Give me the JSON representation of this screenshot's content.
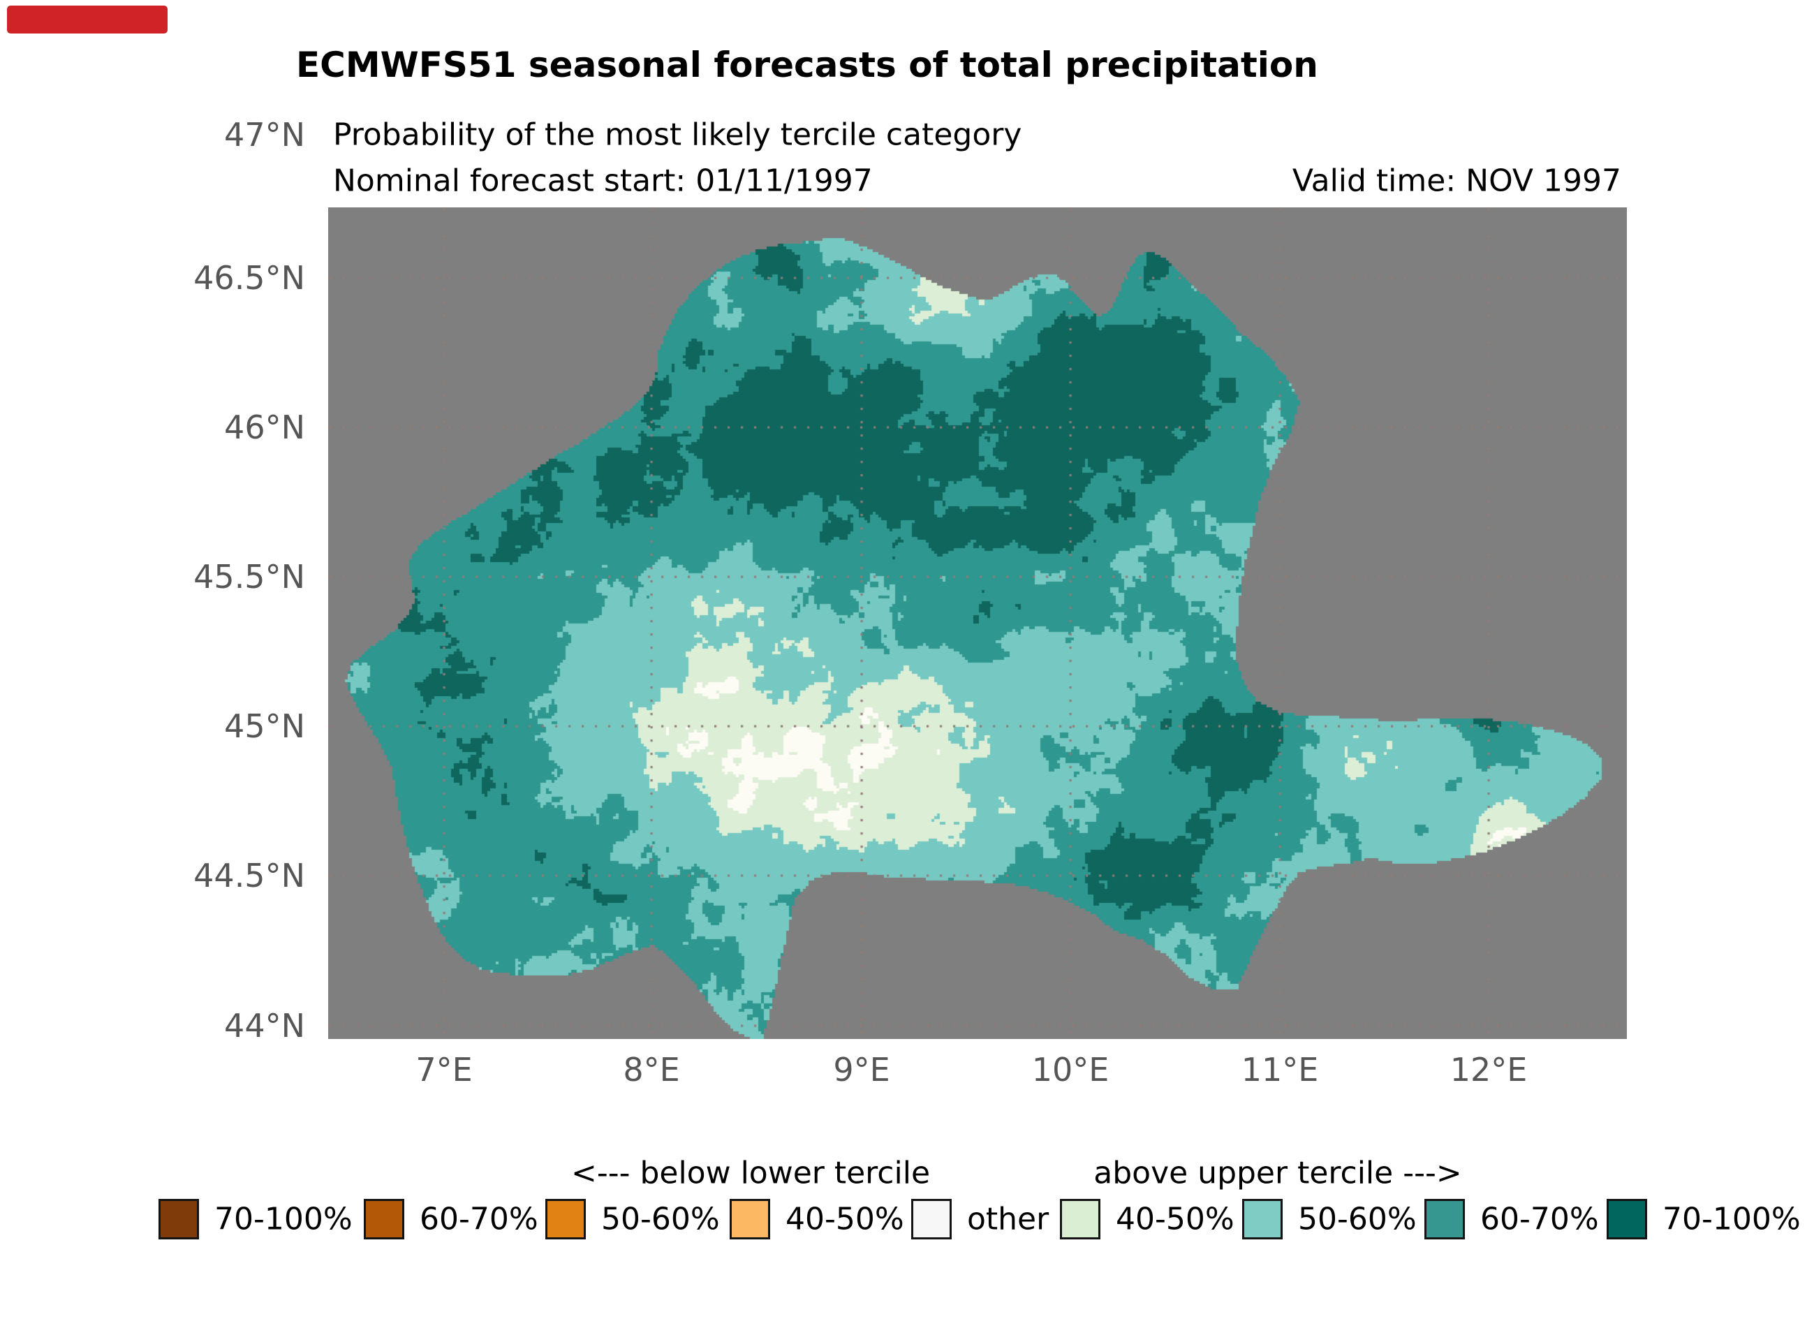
{
  "badge": {
    "color": "#d02328"
  },
  "figure": {
    "title": "ECMWFS51 seasonal forecasts of total precipitation",
    "subtitle": "Probability of the most likely tercile category",
    "forecast_start": "Nominal forecast start: 01/11/1997",
    "valid_time": "Valid time: NOV 1997"
  },
  "axes": {
    "lat_labels": [
      "47°N",
      "46.5°N",
      "46°N",
      "45.5°N",
      "45°N",
      "44.5°N",
      "44°N"
    ],
    "lon_labels": [
      "7°E",
      "8°E",
      "9°E",
      "10°E",
      "11°E",
      "12°E"
    ]
  },
  "map": {
    "background_color": "#7f7f7f",
    "gridline_color": "#8f7d7a",
    "palette": {
      "white": "#fcfcf5",
      "pale_green": "#dceed6",
      "light_teal": "#76c9c2",
      "teal": "#2e978f",
      "dark_teal": "#0e665d"
    }
  },
  "legend": {
    "below_header": "<--- below lower tercile",
    "above_header": "above upper tercile --->",
    "items": [
      {
        "label": "70-100%",
        "color": "#7f3b09"
      },
      {
        "label": "60-70%",
        "color": "#b35807"
      },
      {
        "label": "50-60%",
        "color": "#e08214"
      },
      {
        "label": "40-50%",
        "color": "#fdb863"
      },
      {
        "label": "other",
        "color": "#f7f7f7"
      },
      {
        "label": "40-50%",
        "color": "#d9eed3"
      },
      {
        "label": "50-60%",
        "color": "#7fccc4"
      },
      {
        "label": "60-70%",
        "color": "#35978f"
      },
      {
        "label": "70-100%",
        "color": "#01665e"
      }
    ]
  }
}
